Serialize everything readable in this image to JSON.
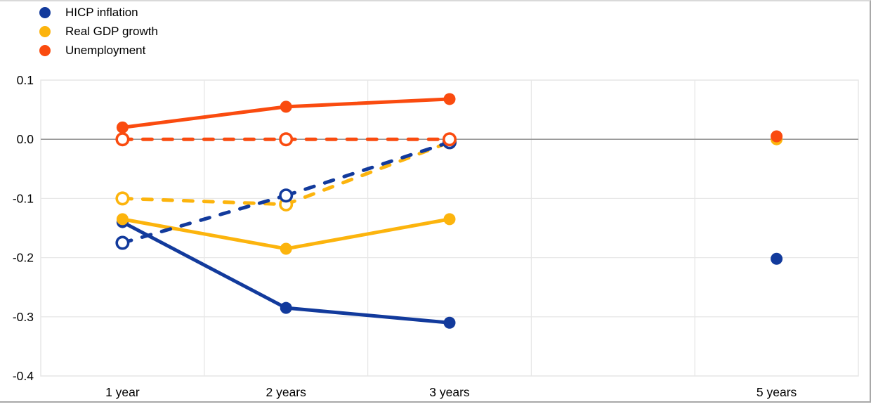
{
  "legend": {
    "position": "top-left",
    "items": [
      {
        "label": "HICP inflation",
        "color": "#123a9c"
      },
      {
        "label": "Real GDP growth",
        "color": "#fcb40d"
      },
      {
        "label": "Unemployment",
        "color": "#fa4b0f"
      }
    ]
  },
  "chart_data": {
    "type": "line",
    "title": "",
    "xlabel": "",
    "ylabel": "",
    "categories": [
      "1 year",
      "2 years",
      "3 years",
      "5 years"
    ],
    "category_slots": [
      0,
      1,
      2,
      4
    ],
    "num_slots": 5,
    "ylim": [
      -0.4,
      0.1
    ],
    "yticks": [
      0.1,
      0.0,
      -0.1,
      -0.2,
      -0.3,
      -0.4
    ],
    "ytick_labels": [
      "0.1",
      "0.0",
      "-0.1",
      "-0.2",
      "-0.3",
      "-0.4"
    ],
    "grid": true,
    "zero_line": true,
    "legend_position": "top-left",
    "colors": {
      "grid": "#e7e7e7",
      "zero_line": "#9a9a9a",
      "text": "#000000"
    },
    "series": [
      {
        "name": "HICP inflation",
        "line_style": "solid",
        "marker": "filled",
        "color": "#123a9c",
        "values": [
          -0.14,
          -0.285,
          -0.31,
          -0.202
        ]
      },
      {
        "name": "Real GDP growth",
        "line_style": "solid",
        "marker": "filled",
        "color": "#fcb40d",
        "values": [
          -0.135,
          -0.185,
          -0.135,
          0.0
        ]
      },
      {
        "name": "Unemployment",
        "line_style": "solid",
        "marker": "filled",
        "color": "#fa4b0f",
        "values": [
          0.02,
          0.055,
          0.068,
          0.005
        ]
      },
      {
        "name": "Real GDP growth (dashed)",
        "line_style": "dashed",
        "marker": "open",
        "color": "#fcb40d",
        "values": [
          -0.1,
          -0.11,
          -0.005,
          null
        ]
      },
      {
        "name": "HICP inflation (dashed)",
        "line_style": "dashed",
        "marker": "open",
        "color": "#123a9c",
        "values": [
          -0.175,
          -0.095,
          -0.005,
          null
        ]
      },
      {
        "name": "Unemployment (dashed)",
        "line_style": "dashed",
        "marker": "open",
        "color": "#fa4b0f",
        "values": [
          0.0,
          0.0,
          0.0,
          null
        ]
      }
    ]
  }
}
